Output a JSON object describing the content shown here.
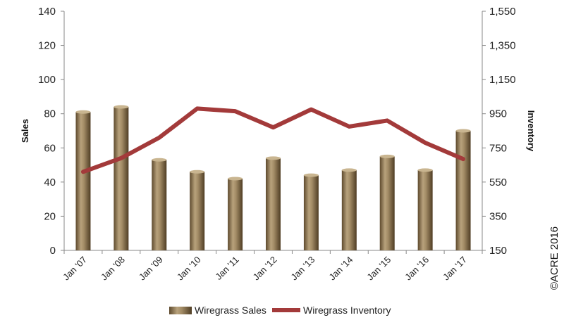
{
  "chart_data": {
    "type": "bar",
    "categories": [
      "Jan '07",
      "Jan '08",
      "Jan '09",
      "Jan '10",
      "Jan '11",
      "Jan '12",
      "Jan '13",
      "Jan '14",
      "Jan '15",
      "Jan '16",
      "Jan '17"
    ],
    "series": [
      {
        "name": "Wiregrass Sales",
        "type": "bar",
        "axis": "left",
        "color": "#8c7654",
        "values": [
          81,
          84,
          53,
          46,
          42,
          54,
          44,
          47,
          55,
          47,
          70
        ]
      },
      {
        "name": "Wiregrass Inventory",
        "type": "line",
        "axis": "right",
        "color": "#a33a3a",
        "values": [
          610,
          690,
          810,
          980,
          965,
          870,
          975,
          875,
          910,
          780,
          685
        ]
      }
    ],
    "ylabel": "Sales",
    "y2label": "Inventory",
    "ylim": [
      0,
      140
    ],
    "y2lim": [
      150,
      1550
    ],
    "yticks": [
      "0",
      "20",
      "40",
      "60",
      "80",
      "100",
      "120",
      "140"
    ],
    "y2ticks": [
      "150",
      "350",
      "550",
      "750",
      "950",
      "1,150",
      "1,350",
      "1,550"
    ],
    "grid": false,
    "legend_position": "bottom"
  },
  "copyright": "©ACRE 2016"
}
